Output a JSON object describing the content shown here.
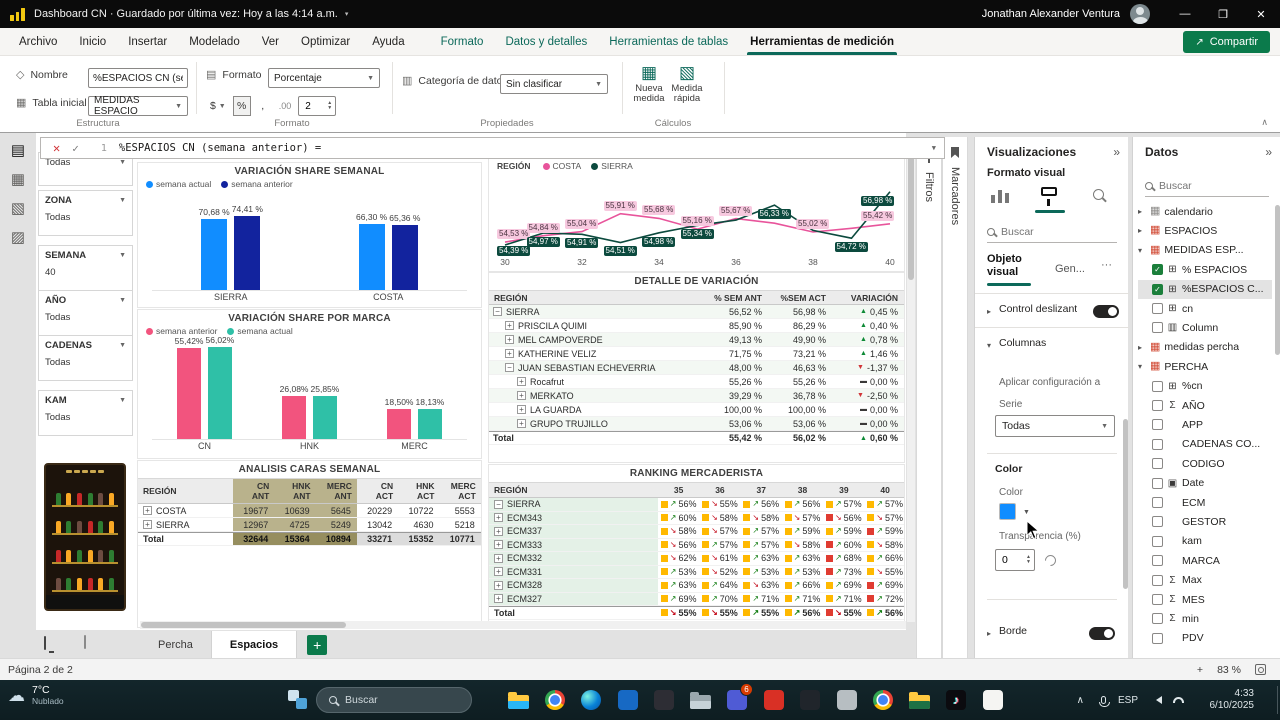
{
  "titlebar": {
    "title": "Dashboard CN · Guardado por última vez: Hoy a las 4:14 a.m.",
    "user_name": "Jonathan Alexander Ventura"
  },
  "menubar": {
    "items": [
      "Archivo",
      "Inicio",
      "Insertar",
      "Modelado",
      "Ver",
      "Optimizar",
      "Ayuda"
    ],
    "context_items": [
      "Formato",
      "Datos y detalles",
      "Herramientas de tablas"
    ],
    "active_item": "Herramientas de medición",
    "share_label": "Compartir"
  },
  "ribbon": {
    "name_label": "Nombre",
    "name_value": "%ESPACIOS CN (se..",
    "table_label": "Tabla inicial",
    "table_value": "MEDIDAS ESPACIO",
    "format_label": "Formato",
    "format_value": "Porcentaje",
    "dollar": "$",
    "percent": "%",
    "comma": ",",
    "decimal_icon": ".00",
    "decimals_value": "2",
    "category_label": "Categoría de datos",
    "category_value": "Sin clasificar",
    "new_measure": [
      "Nueva",
      "medida"
    ],
    "quick_measure": [
      "Medida",
      "rápida"
    ],
    "group_labels": [
      "Estructura",
      "Formato",
      "Propiedades",
      "Cálculos"
    ]
  },
  "formula_bar": {
    "line_number": "1",
    "expression": "%ESPACIOS CN (semana anterior) ="
  },
  "slicers": [
    {
      "label": "",
      "value": "Todas"
    },
    {
      "label": "ZONA",
      "value": "Todas"
    },
    {
      "label": "SEMANA",
      "value": "40"
    },
    {
      "label": "AÑO",
      "value": "Todas"
    },
    {
      "label": "CADENAS",
      "value": "Todas"
    },
    {
      "label": "KAM",
      "value": "Todas"
    }
  ],
  "chart_data": [
    {
      "id": "share_semanal",
      "type": "bar",
      "title": "VARIACIÓN SHARE SEMANAL",
      "categories": [
        "SIERRA",
        "COSTA"
      ],
      "ylim": [
        0,
        100
      ],
      "series": [
        {
          "name": "semana actual",
          "color": "#118DFF",
          "values": [
            70.68,
            66.3
          ],
          "labels": [
            "70,68 %",
            "66,30 %"
          ]
        },
        {
          "name": "semana anterior",
          "color": "#12239E",
          "values": [
            74.41,
            65.36
          ],
          "labels": [
            "74,41 %",
            "65,36 %"
          ]
        }
      ]
    },
    {
      "id": "region_line",
      "type": "line",
      "legend_title": "REGIÓN",
      "x": [
        30,
        31,
        32,
        33,
        34,
        35,
        36,
        37,
        38,
        39,
        40
      ],
      "x_ticks": [
        "30",
        "32",
        "34",
        "36",
        "38",
        "40"
      ],
      "ylim": [
        54,
        57.5
      ],
      "series": [
        {
          "name": "COSTA",
          "color": "#E8549B",
          "chip_bg": "#F7C9DF",
          "chip_fg": "#4a3340",
          "values": [
            54.53,
            54.84,
            55.04,
            55.91,
            55.68,
            55.16,
            55.67,
            55.45,
            55.02,
            55.2,
            55.42
          ],
          "labels": [
            "54,53 %",
            "54,84 %",
            "55,04 %",
            "55,91 %",
            "55,68 %",
            "55,16 %",
            "55,67 %",
            "",
            "55,02 %",
            "",
            "55,42 %"
          ]
        },
        {
          "name": "SIERRA",
          "color": "#0C4A3E",
          "chip_bg": "#0C4A3E",
          "chip_fg": "#ffffff",
          "values": [
            54.39,
            54.97,
            54.91,
            54.51,
            54.98,
            55.34,
            55.6,
            56.33,
            55.1,
            54.72,
            56.98
          ],
          "labels": [
            "54,39 %",
            "54,97 %",
            "54,91 %",
            "54,51 %",
            "54,98 %",
            "55,34 %",
            "",
            "56,33 %",
            "",
            "54,72 %",
            "56,98 %"
          ]
        }
      ]
    },
    {
      "id": "share_marca",
      "type": "bar",
      "title": "VARIACIÓN SHARE POR MARCA",
      "categories": [
        "CN",
        "HNK",
        "MERC"
      ],
      "ylim": [
        0,
        62
      ],
      "series": [
        {
          "name": "semana anterior",
          "color": "#F2547E",
          "values": [
            55.42,
            26.08,
            18.5
          ],
          "labels": [
            "55,42%",
            "26,08%",
            "18,50%"
          ]
        },
        {
          "name": "semana actual",
          "color": "#2FC0A7",
          "values": [
            56.02,
            25.85,
            18.13
          ],
          "labels": [
            "56,02%",
            "25,85%",
            "18,13%"
          ]
        }
      ]
    }
  ],
  "tables": {
    "detalle": {
      "title": "DETALLE DE VARIACIÓN",
      "columns": [
        "REGIÓN",
        "% SEM ANT",
        "%SEM ACT",
        "VARIACIÓN"
      ],
      "rows": [
        {
          "name": "SIERRA",
          "level": 0,
          "expander": "minus",
          "ant": "56,52 %",
          "act": "56,98 %",
          "variacion": "0,45 %",
          "trend": "up"
        },
        {
          "name": "PRISCILA QUIMI",
          "level": 1,
          "expander": "plus",
          "ant": "85,90 %",
          "act": "86,29 %",
          "variacion": "0,40 %",
          "trend": "up"
        },
        {
          "name": "MEL CAMPOVERDE",
          "level": 1,
          "expander": "plus",
          "ant": "49,13 %",
          "act": "49,90 %",
          "variacion": "0,78 %",
          "trend": "up"
        },
        {
          "name": "KATHERINE VELIZ",
          "level": 1,
          "expander": "plus",
          "ant": "71,75 %",
          "act": "73,21 %",
          "variacion": "1,46 %",
          "trend": "up"
        },
        {
          "name": "JUAN SEBASTIAN ECHEVERRIA",
          "level": 1,
          "expander": "minus",
          "ant": "48,00 %",
          "act": "46,63 %",
          "variacion": "-1,37 %",
          "trend": "down"
        },
        {
          "name": "Rocafrut",
          "level": 2,
          "expander": "plus",
          "ant": "55,26 %",
          "act": "55,26 %",
          "variacion": "0,00 %",
          "trend": "flat"
        },
        {
          "name": "MERKATO",
          "level": 2,
          "expander": "plus",
          "ant": "39,29 %",
          "act": "36,78 %",
          "variacion": "-2,50 %",
          "trend": "down"
        },
        {
          "name": "LA GUARDA",
          "level": 2,
          "expander": "plus",
          "ant": "100,00 %",
          "act": "100,00 %",
          "variacion": "0,00 %",
          "trend": "flat"
        },
        {
          "name": "GRUPO TRUJILLO",
          "level": 2,
          "expander": "plus",
          "ant": "53,06 %",
          "act": "53,06 %",
          "variacion": "0,00 %",
          "trend": "flat"
        },
        {
          "name": "Total",
          "level": 0,
          "expander": "none",
          "ant": "55,42 %",
          "act": "56,02 %",
          "variacion": "0,60 %",
          "trend": "up",
          "is_total": true
        }
      ]
    },
    "caras": {
      "title": "ANALISIS CARAS SEMANAL",
      "region_header": "REGIÓN",
      "col_headers": [
        {
          "top": "CN",
          "bottom": "ANT",
          "shaded": true
        },
        {
          "top": "HNK",
          "bottom": "ANT",
          "shaded": true
        },
        {
          "top": "MERC",
          "bottom": "ANT",
          "shaded": true
        },
        {
          "top": "CN",
          "bottom": "ACT",
          "shaded": false
        },
        {
          "top": "HNK",
          "bottom": "ACT",
          "shaded": false
        },
        {
          "top": "MERC",
          "bottom": "ACT",
          "shaded": false
        }
      ],
      "rows": [
        {
          "name": "COSTA",
          "expander": "plus",
          "values": [
            "19677",
            "10639",
            "5645",
            "20229",
            "10722",
            "5553"
          ]
        },
        {
          "name": "SIERRA",
          "expander": "plus",
          "values": [
            "12967",
            "4725",
            "5249",
            "13042",
            "4630",
            "5218"
          ]
        },
        {
          "name": "Total",
          "expander": "none",
          "values": [
            "32644",
            "15364",
            "10894",
            "33271",
            "15352",
            "10771"
          ],
          "is_total": true
        }
      ]
    },
    "ranking": {
      "title": "RANKING MERCADERISTA",
      "columns": [
        "REGIÓN",
        "35",
        "36",
        "37",
        "38",
        "39",
        "40"
      ],
      "rows": [
        {
          "name": "SIERRA",
          "expander": "minus",
          "cells": [
            "o,u,56%",
            "o,d,55%",
            "o,u,56%",
            "o,u,56%",
            "o,u,57%",
            "o,u,57%"
          ]
        },
        {
          "name": "ECM343",
          "expander": "plus",
          "cells": [
            "o,u,60%",
            "o,d,58%",
            "o,d,58%",
            "o,d,57%",
            "r,d,56%",
            "o,d,57%"
          ]
        },
        {
          "name": "ECM337",
          "expander": "plus",
          "cells": [
            "o,d,58%",
            "o,d,57%",
            "o,u,57%",
            "o,u,59%",
            "o,u,59%",
            "r,u,59%"
          ]
        },
        {
          "name": "ECM333",
          "expander": "plus",
          "cells": [
            "o,d,56%",
            "o,u,57%",
            "o,u,57%",
            "o,d,58%",
            "r,u,60%",
            "o,d,58%"
          ]
        },
        {
          "name": "ECM332",
          "expander": "plus",
          "cells": [
            "o,d,62%",
            "o,d,61%",
            "o,u,63%",
            "o,u,63%",
            "r,u,68%",
            "o,u,66%"
          ]
        },
        {
          "name": "ECM331",
          "expander": "plus",
          "cells": [
            "o,u,53%",
            "o,d,52%",
            "o,u,53%",
            "o,u,53%",
            "r,u,73%",
            "o,d,55%"
          ]
        },
        {
          "name": "ECM328",
          "expander": "plus",
          "cells": [
            "o,u,63%",
            "o,u,64%",
            "o,d,63%",
            "o,u,66%",
            "o,u,69%",
            "r,u,69%"
          ]
        },
        {
          "name": "ECM327",
          "expander": "plus",
          "cells": [
            "o,u,69%",
            "o,u,70%",
            "o,u,71%",
            "o,u,71%",
            "o,u,71%",
            "r,u,72%"
          ]
        },
        {
          "name": "Total",
          "expander": "none",
          "cells": [
            "o,d,55%",
            "o,d,55%",
            "o,u,55%",
            "o,u,56%",
            "r,d,55%",
            "o,u,56%"
          ],
          "is_total": true
        }
      ]
    }
  },
  "collapsed_panes": {
    "filtros": "Filtros",
    "marcadores": "Marcadores"
  },
  "viz_pane": {
    "title": "Visualizaciones",
    "subtitle": "Formato visual",
    "search_placeholder": "Buscar",
    "tab_objeto_line1": "Objeto",
    "tab_objeto_line2": "visual",
    "tab_general": "Gen...",
    "more": "···",
    "sections": {
      "slider": "Control deslizant...",
      "columns": "Columnas",
      "apply_to": "Aplicar configuración a",
      "serie_label": "Serie",
      "serie_value": "Todas",
      "color_header": "Color",
      "color_label": "Color",
      "color_value": "#118DFF",
      "transparency_label": "Transparencia (%)",
      "transparency_value": "0",
      "border": "Borde"
    }
  },
  "data_pane": {
    "title": "Datos",
    "search_placeholder": "Buscar",
    "tree": [
      {
        "label": "calendario",
        "kind": "table",
        "chevron": "right",
        "icon_color": "#8a8886"
      },
      {
        "label": "ESPACIOS",
        "kind": "table",
        "chevron": "right",
        "icon_color": "#d0452f"
      },
      {
        "label": "MEDIDAS ESP...",
        "kind": "table",
        "chevron": "down",
        "icon_color": "#d0452f"
      },
      {
        "label": "% ESPACIOS",
        "kind": "field",
        "icon": "calc",
        "checked": true
      },
      {
        "label": "%ESPACIOS C...",
        "kind": "field",
        "icon": "calc",
        "checked": true,
        "selected": true
      },
      {
        "label": "cn",
        "kind": "field",
        "icon": "calc",
        "checked": false
      },
      {
        "label": "Column",
        "kind": "field",
        "icon": "column",
        "checked": false
      },
      {
        "label": "medidas percha",
        "kind": "table",
        "chevron": "right",
        "icon_color": "#d0452f"
      },
      {
        "label": "PERCHA",
        "kind": "table",
        "chevron": "down",
        "icon_color": "#d0452f"
      },
      {
        "label": "%cn",
        "kind": "field",
        "icon": "calc",
        "checked": false
      },
      {
        "label": "AÑO",
        "kind": "field",
        "icon": "sum",
        "checked": false
      },
      {
        "label": "APP",
        "kind": "field",
        "icon": "none",
        "checked": false
      },
      {
        "label": "CADENAS CO...",
        "kind": "field",
        "icon": "none",
        "checked": false
      },
      {
        "label": "CODIGO",
        "kind": "field",
        "icon": "none",
        "checked": false
      },
      {
        "label": "Date",
        "kind": "field",
        "icon": "calendar",
        "checked": false
      },
      {
        "label": "ECM",
        "kind": "field",
        "icon": "none",
        "checked": false
      },
      {
        "label": "GESTOR",
        "kind": "field",
        "icon": "none",
        "checked": false
      },
      {
        "label": "kam",
        "kind": "field",
        "icon": "none",
        "checked": false
      },
      {
        "label": "MARCA",
        "kind": "field",
        "icon": "none",
        "checked": false
      },
      {
        "label": "Max",
        "kind": "field",
        "icon": "sum",
        "checked": false
      },
      {
        "label": "MES",
        "kind": "field",
        "icon": "sum",
        "checked": false
      },
      {
        "label": "min",
        "kind": "field",
        "icon": "sum",
        "checked": false
      },
      {
        "label": "PDV",
        "kind": "field",
        "icon": "none",
        "checked": false
      }
    ]
  },
  "page_bar": {
    "tabs": [
      {
        "label": "Percha",
        "active": false
      },
      {
        "label": "Espacios",
        "active": true
      }
    ],
    "add_label": "+"
  },
  "status_bar": {
    "page_info": "Página 2 de 2",
    "zoom_in": "+",
    "zoom_level": "83 %"
  },
  "taskbar": {
    "weather_temp": "7°C",
    "weather_desc": "Nublado",
    "search_placeholder": "Buscar",
    "language": "ESP",
    "time": "4:33",
    "date": "6/10/2025",
    "icons": [
      {
        "name": "file-explorer-icon",
        "shape": "folder",
        "color": "#ffc940",
        "accent": "#29b6f6"
      },
      {
        "name": "chrome-icon",
        "shape": "chrome"
      },
      {
        "name": "edge-icon",
        "shape": "edge"
      },
      {
        "name": "outlook-icon",
        "shape": "square",
        "color": "#1769c4"
      },
      {
        "name": "terminal-icon",
        "shape": "square",
        "color": "#2d2d34"
      },
      {
        "name": "folder-icon",
        "shape": "folder",
        "color": "#9aa7ad",
        "accent": "#c6d2d8"
      },
      {
        "name": "teams-icon",
        "shape": "square",
        "color": "#4f5bd5",
        "badge": "6"
      },
      {
        "name": "red-app-icon",
        "shape": "square",
        "color": "#d93025"
      },
      {
        "name": "dark-app-icon",
        "shape": "square",
        "color": "#20252b"
      },
      {
        "name": "gray-app-icon",
        "shape": "square",
        "color": "#b7bec2"
      },
      {
        "name": "browser-icon",
        "shape": "chrome"
      },
      {
        "name": "excel-folder-icon",
        "shape": "folder",
        "color": "#ffc940",
        "accent": "#1e7145"
      },
      {
        "name": "tiktok-icon",
        "shape": "tiktok",
        "color": "#0b0b0f"
      },
      {
        "name": "notes-icon",
        "shape": "notes",
        "color": "#f5f5f2"
      }
    ]
  }
}
